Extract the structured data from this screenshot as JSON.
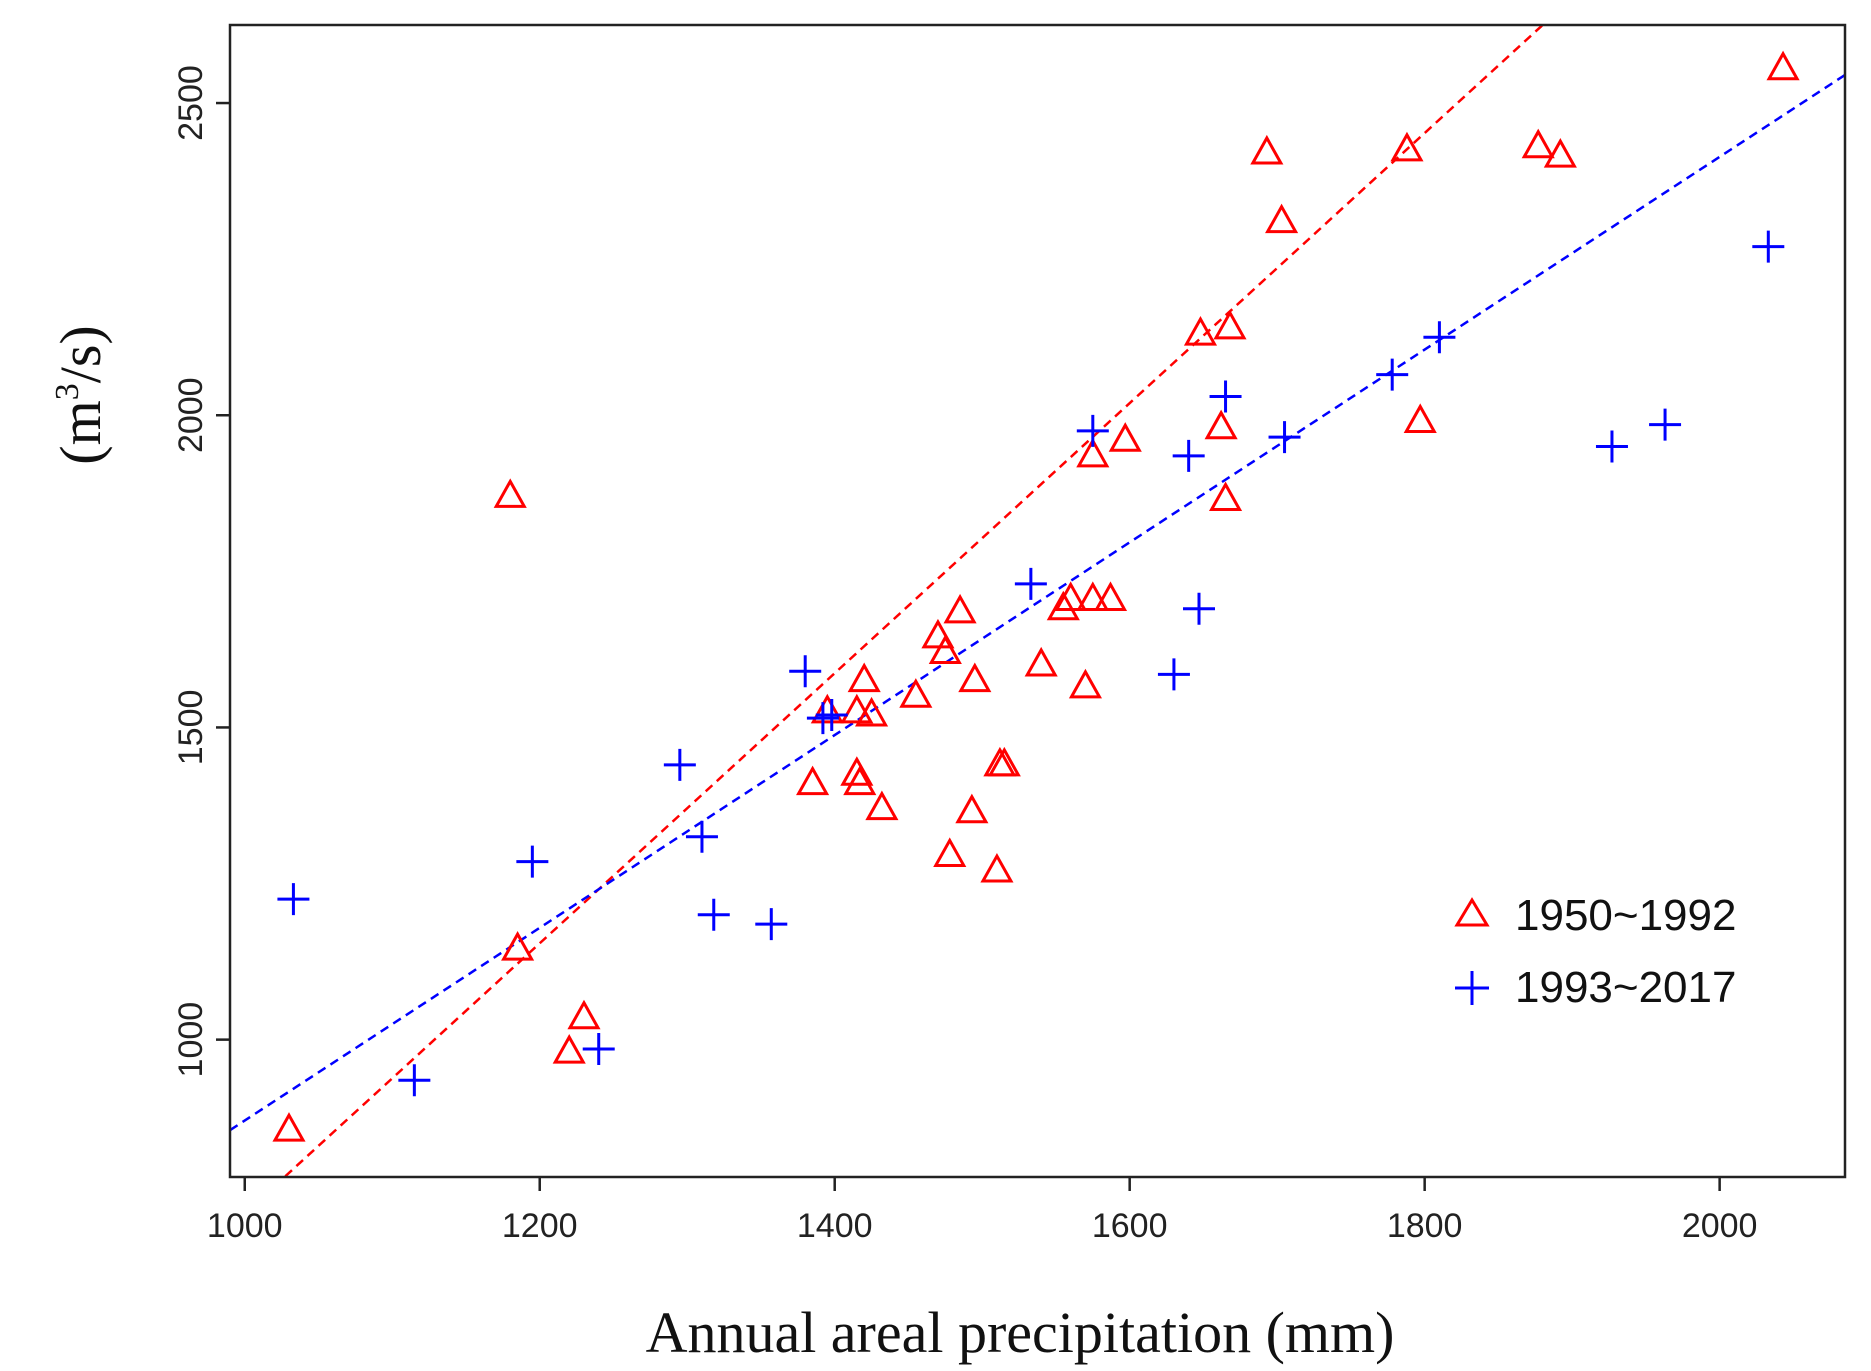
{
  "chart_data": {
    "type": "scatter",
    "title": "",
    "xlabel": "Annual areal precipitation (mm)",
    "ylabel_parts": {
      "prefix": "(m",
      "superscript": "3",
      "suffix": "/s)"
    },
    "xlim": [
      990,
      2085
    ],
    "ylim": [
      780,
      2625
    ],
    "xticks": [
      1000,
      1200,
      1400,
      1600,
      1800,
      2000
    ],
    "yticks": [
      1000,
      1500,
      2000,
      2500
    ],
    "grid": false,
    "legend_position": "bottom-right",
    "series": [
      {
        "name": "1950~1992",
        "marker": "triangle",
        "color": "#ff0000",
        "points": [
          [
            1030,
            855
          ],
          [
            1180,
            1870
          ],
          [
            1185,
            1145
          ],
          [
            1220,
            980
          ],
          [
            1230,
            1035
          ],
          [
            1385,
            1410
          ],
          [
            1395,
            1525
          ],
          [
            1415,
            1425
          ],
          [
            1417,
            1410
          ],
          [
            1415,
            1525
          ],
          [
            1420,
            1575
          ],
          [
            1425,
            1520
          ],
          [
            1432,
            1370
          ],
          [
            1455,
            1550
          ],
          [
            1470,
            1645
          ],
          [
            1475,
            1620
          ],
          [
            1478,
            1295
          ],
          [
            1485,
            1685
          ],
          [
            1493,
            1365
          ],
          [
            1495,
            1575
          ],
          [
            1510,
            1270
          ],
          [
            1512,
            1440
          ],
          [
            1515,
            1440
          ],
          [
            1540,
            1600
          ],
          [
            1555,
            1690
          ],
          [
            1560,
            1705
          ],
          [
            1570,
            1565
          ],
          [
            1575,
            1705
          ],
          [
            1575,
            1935
          ],
          [
            1587,
            1705
          ],
          [
            1597,
            1960
          ],
          [
            1648,
            2130
          ],
          [
            1662,
            1980
          ],
          [
            1665,
            1865
          ],
          [
            1668,
            2140
          ],
          [
            1693,
            2420
          ],
          [
            1703,
            2310
          ],
          [
            1788,
            2425
          ],
          [
            1797,
            1990
          ],
          [
            1877,
            2430
          ],
          [
            1892,
            2415
          ],
          [
            2043,
            2555
          ]
        ]
      },
      {
        "name": "1993~2017",
        "marker": "plus",
        "color": "#0000ff",
        "points": [
          [
            1033,
            1225
          ],
          [
            1115,
            935
          ],
          [
            1195,
            1285
          ],
          [
            1240,
            985
          ],
          [
            1295,
            1440
          ],
          [
            1310,
            1325
          ],
          [
            1318,
            1200
          ],
          [
            1357,
            1185
          ],
          [
            1380,
            1590
          ],
          [
            1392,
            1515
          ],
          [
            1398,
            1520
          ],
          [
            1533,
            1730
          ],
          [
            1575,
            1975
          ],
          [
            1630,
            1585
          ],
          [
            1640,
            1935
          ],
          [
            1647,
            1690
          ],
          [
            1665,
            2030
          ],
          [
            1705,
            1965
          ],
          [
            1778,
            2065
          ],
          [
            1810,
            2125
          ],
          [
            1927,
            1950
          ],
          [
            1963,
            1985
          ],
          [
            2033,
            2270
          ]
        ]
      }
    ],
    "trendlines": [
      {
        "series": "1950~1992",
        "color": "#ff0000",
        "points": [
          [
            1020,
            765
          ],
          [
            1880,
            2625
          ]
        ]
      },
      {
        "series": "1993~2017",
        "color": "#0000ff",
        "points": [
          [
            990,
            855
          ],
          [
            2085,
            2545
          ]
        ]
      }
    ]
  }
}
